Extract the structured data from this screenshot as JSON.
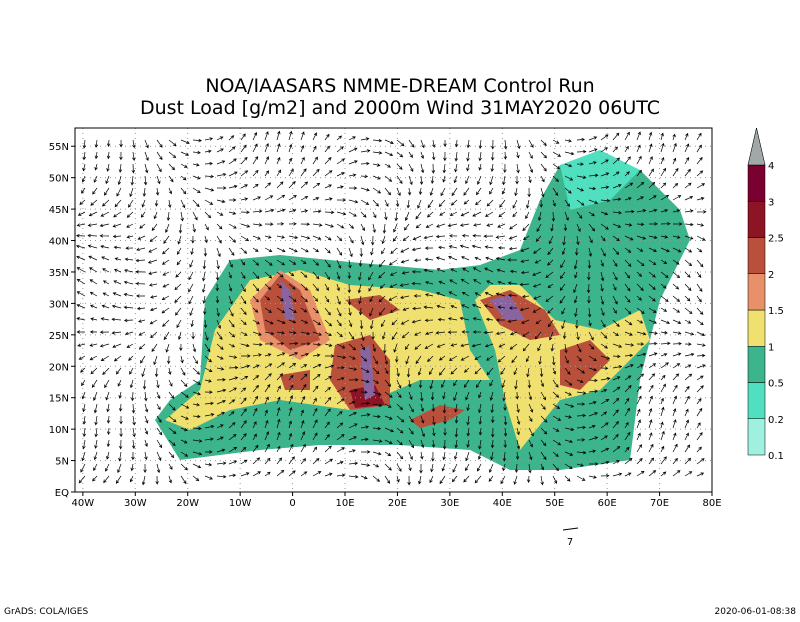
{
  "title": [
    "NOA/IAASARS NMME-DREAM Control Run",
    "Dust Load [g/m2] and 2000m Wind 31MAY2020 06UTC"
  ],
  "map": {
    "lonlim": [
      -41.5,
      80
    ],
    "latlim": [
      0,
      57.9
    ],
    "lon_ticks": [
      {
        "value": -40,
        "label": "40W"
      },
      {
        "value": -30,
        "label": "30W"
      },
      {
        "value": -20,
        "label": "20W"
      },
      {
        "value": -10,
        "label": "10W"
      },
      {
        "value": 0,
        "label": "0"
      },
      {
        "value": 10,
        "label": "10E"
      },
      {
        "value": 20,
        "label": "20E"
      },
      {
        "value": 30,
        "label": "30E"
      },
      {
        "value": 40,
        "label": "40E"
      },
      {
        "value": 50,
        "label": "50E"
      },
      {
        "value": 60,
        "label": "60E"
      },
      {
        "value": 70,
        "label": "70E"
      },
      {
        "value": 80,
        "label": "80E"
      }
    ],
    "lat_ticks": [
      {
        "value": 0,
        "label": "EQ"
      },
      {
        "value": 5,
        "label": "5N"
      },
      {
        "value": 10,
        "label": "10N"
      },
      {
        "value": 15,
        "label": "15N"
      },
      {
        "value": 20,
        "label": "20N"
      },
      {
        "value": 25,
        "label": "25N"
      },
      {
        "value": 30,
        "label": "30N"
      },
      {
        "value": 35,
        "label": "35N"
      },
      {
        "value": 40,
        "label": "40N"
      },
      {
        "value": 45,
        "label": "45N"
      },
      {
        "value": 50,
        "label": "50N"
      },
      {
        "value": 55,
        "label": "55N"
      }
    ]
  },
  "colorbar": {
    "levels": [
      0.1,
      0.2,
      0.5,
      1,
      1.5,
      2,
      2.5,
      3,
      4
    ],
    "colors": [
      "#a0f0e0",
      "#50e0c0",
      "#3cb48c",
      "#f0e070",
      "#e8906a",
      "#b8503c",
      "#8c1424",
      "#7a0030",
      "#8a64a0",
      "#a0a8a8"
    ]
  },
  "wind_reference": "7",
  "footer": {
    "left": "GrADS: COLA/IGES",
    "right": "2020-06-01-08:38"
  }
}
